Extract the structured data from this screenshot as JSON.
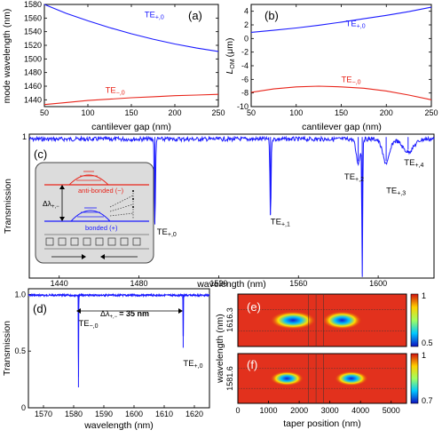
{
  "panels": {
    "a": {
      "label": "(a)",
      "xlabel": "cantilever gap (nm)",
      "ylabel": "mode wavelength (nm)",
      "xlim": [
        50,
        250
      ],
      "ylim": [
        1430,
        1580
      ],
      "xticks": [
        "50",
        "100",
        "150",
        "200",
        "250"
      ],
      "yticks": [
        "1440",
        "1460",
        "1480",
        "1500",
        "1520",
        "1540",
        "1560",
        "1580"
      ],
      "series": [
        {
          "name": "TE+,0",
          "color": "#1a1aff",
          "x": [
            50,
            75,
            100,
            125,
            150,
            175,
            200,
            225,
            250
          ],
          "y": [
            1580,
            1567,
            1556,
            1546,
            1537,
            1529,
            1522,
            1516,
            1511
          ]
        },
        {
          "name": "TE−,0",
          "color": "#e8251b",
          "x": [
            50,
            75,
            100,
            125,
            150,
            175,
            200,
            225,
            250
          ],
          "y": [
            1433,
            1436,
            1439,
            1441,
            1443,
            1444.5,
            1446,
            1447,
            1448
          ]
        }
      ],
      "annotations": [
        {
          "text": "TE",
          "sub": "+,0",
          "x": 165,
          "y": 1561,
          "color": "#1a1aff"
        },
        {
          "text": "TE",
          "sub": "−,0",
          "x": 120,
          "y": 1450,
          "color": "#e8251b"
        }
      ]
    },
    "b": {
      "label": "(b)",
      "xlabel": "cantilever gap (nm)",
      "ylabel": "L_OM (μm)",
      "ylabel_main": "L",
      "ylabel_sub": "OM",
      "ylabel_unit": "(μm)",
      "xlim": [
        50,
        250
      ],
      "ylim": [
        -10,
        5
      ],
      "xticks": [
        "50",
        "100",
        "150",
        "200",
        "250"
      ],
      "yticks": [
        "-10",
        "-8",
        "-6",
        "-4",
        "-2",
        "0",
        "2",
        "4"
      ],
      "series": [
        {
          "name": "TE+,0",
          "color": "#1a1aff",
          "x": [
            50,
            75,
            100,
            125,
            150,
            175,
            200,
            225,
            250
          ],
          "y": [
            0.9,
            1.2,
            1.55,
            1.95,
            2.4,
            2.9,
            3.4,
            3.95,
            4.6
          ]
        },
        {
          "name": "TE−,0",
          "color": "#e8251b",
          "x": [
            50,
            75,
            100,
            125,
            150,
            175,
            200,
            225,
            250
          ],
          "y": [
            -7.9,
            -7.4,
            -7.1,
            -7.0,
            -7.1,
            -7.3,
            -7.7,
            -8.3,
            -9.0
          ]
        }
      ],
      "annotations": [
        {
          "text": "TE",
          "sub": "+,0",
          "x": 155,
          "y": 1.8,
          "color": "#1a1aff"
        },
        {
          "text": "TE",
          "sub": "−,0",
          "x": 150,
          "y": -6.4,
          "color": "#e8251b"
        }
      ]
    },
    "c": {
      "label": "(c)",
      "xlabel": "wavelength (nm)",
      "ylabel": "Transmission",
      "xlim": [
        1425,
        1628
      ],
      "ylim": [
        0,
        1.02
      ],
      "xticks": [
        "1440",
        "1480",
        "1520",
        "1560",
        "1600"
      ],
      "yticks": [
        "1"
      ],
      "dips": [
        {
          "x": 1488,
          "depth": 0.62,
          "width": 0.4
        },
        {
          "x": 1546,
          "depth": 0.55,
          "width": 0.4
        },
        {
          "x": 1590,
          "depth": 0.17,
          "width": 1.5
        },
        {
          "x": 1592,
          "depth": 0.97,
          "width": 0.3
        },
        {
          "x": 1604,
          "depth": 0.17,
          "width": 2.5
        },
        {
          "x": 1615,
          "depth": 0.09,
          "width": 4
        }
      ],
      "annotations": [
        {
          "text": "TE",
          "sub": "+,0",
          "x": 1489,
          "y": 0.31
        },
        {
          "text": "TE",
          "sub": "+,1",
          "x": 1546,
          "y": 0.38
        },
        {
          "text": "TE",
          "sub": "+,2",
          "x": 1583,
          "y": 0.7
        },
        {
          "text": "TE",
          "sub": "+,3",
          "x": 1604,
          "y": 0.6
        },
        {
          "text": "TE",
          "sub": "+,4",
          "x": 1613,
          "y": 0.8
        }
      ],
      "inset": {
        "anti_label": "anti-bonded (−)",
        "bonded_label": "bonded (+)",
        "delta": "Δλ",
        "delta_sub": "+,−"
      }
    },
    "d": {
      "label": "(d)",
      "xlabel": "wavelength (nm)",
      "ylabel": "Transmission",
      "xlim": [
        1565,
        1625
      ],
      "ylim": [
        0,
        1.05
      ],
      "xticks": [
        "1570",
        "1580",
        "1590",
        "1600",
        "1610",
        "1620"
      ],
      "yticks": [
        "0",
        "0.5",
        "1.0"
      ],
      "dips": [
        {
          "x": 1581.6,
          "depth": 0.82,
          "width": 0.08
        },
        {
          "x": 1616.3,
          "depth": 0.47,
          "width": 0.08
        }
      ],
      "delta_text": "Δλ",
      "delta_sub": "+,−",
      "delta_value": "= 35 nm",
      "annotations": [
        {
          "text": "TE",
          "sub": "−,0",
          "x": 1581.6,
          "y": 0.72
        },
        {
          "text": "TE",
          "sub": "+,0",
          "x": 1616.3,
          "y": 0.37
        }
      ]
    },
    "e": {
      "label": "(e)",
      "ytick": "1616.3",
      "colorbar": [
        "1",
        "0.5"
      ],
      "blobs": [
        {
          "cx": 1800,
          "w": 1500,
          "h": 0.35
        },
        {
          "cx": 3400,
          "w": 1300,
          "h": 0.35
        }
      ]
    },
    "f": {
      "label": "(f)",
      "ytick": "1581.6",
      "colorbar": [
        "1",
        "0.7"
      ],
      "blobs": [
        {
          "cx": 1600,
          "w": 1100,
          "h": 0.3
        },
        {
          "cx": 3700,
          "w": 1100,
          "h": 0.3
        }
      ]
    },
    "ef": {
      "xlabel": "taper position (nm)",
      "ylabel": "wavelength (nm)",
      "xlim": [
        0,
        5500
      ],
      "xticks": [
        "0",
        "1000",
        "2000",
        "3000",
        "4000",
        "5000"
      ]
    }
  }
}
